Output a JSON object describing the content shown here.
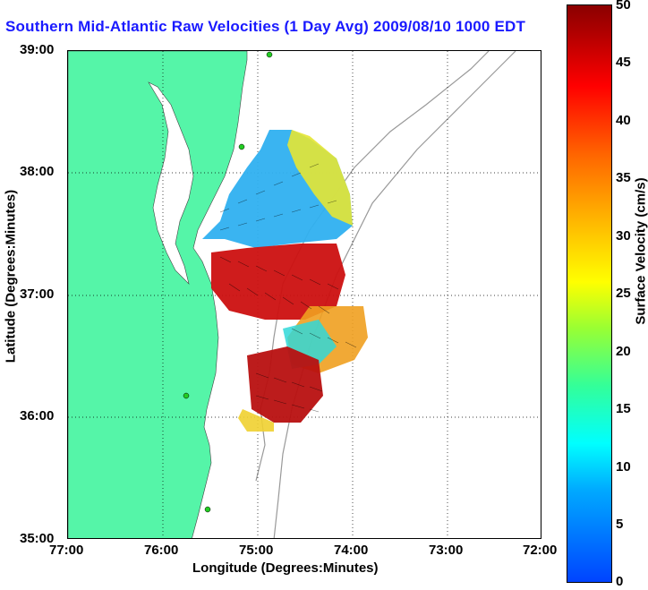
{
  "title": "Southern Mid-Atlantic Raw Velocities (1 Day Avg) 2009/08/10 1000 EDT",
  "x_ticks": [
    "77:00",
    "76:00",
    "75:00",
    "74:00",
    "73:00",
    "72:00"
  ],
  "y_ticks": [
    "39:00",
    "38:00",
    "37:00",
    "36:00",
    "35:00"
  ],
  "xlabel": "Longitude (Degrees:Minutes)",
  "ylabel": "Latitude (Degrees:Minutes)",
  "colorbar": {
    "label": "Surface Velocity (cm/s)",
    "ticks": [
      "50",
      "45",
      "40",
      "35",
      "30",
      "25",
      "20",
      "15",
      "10",
      "5",
      "0"
    ]
  },
  "colors": {
    "land": "#55f5a8",
    "title": "#1a1aff"
  }
}
